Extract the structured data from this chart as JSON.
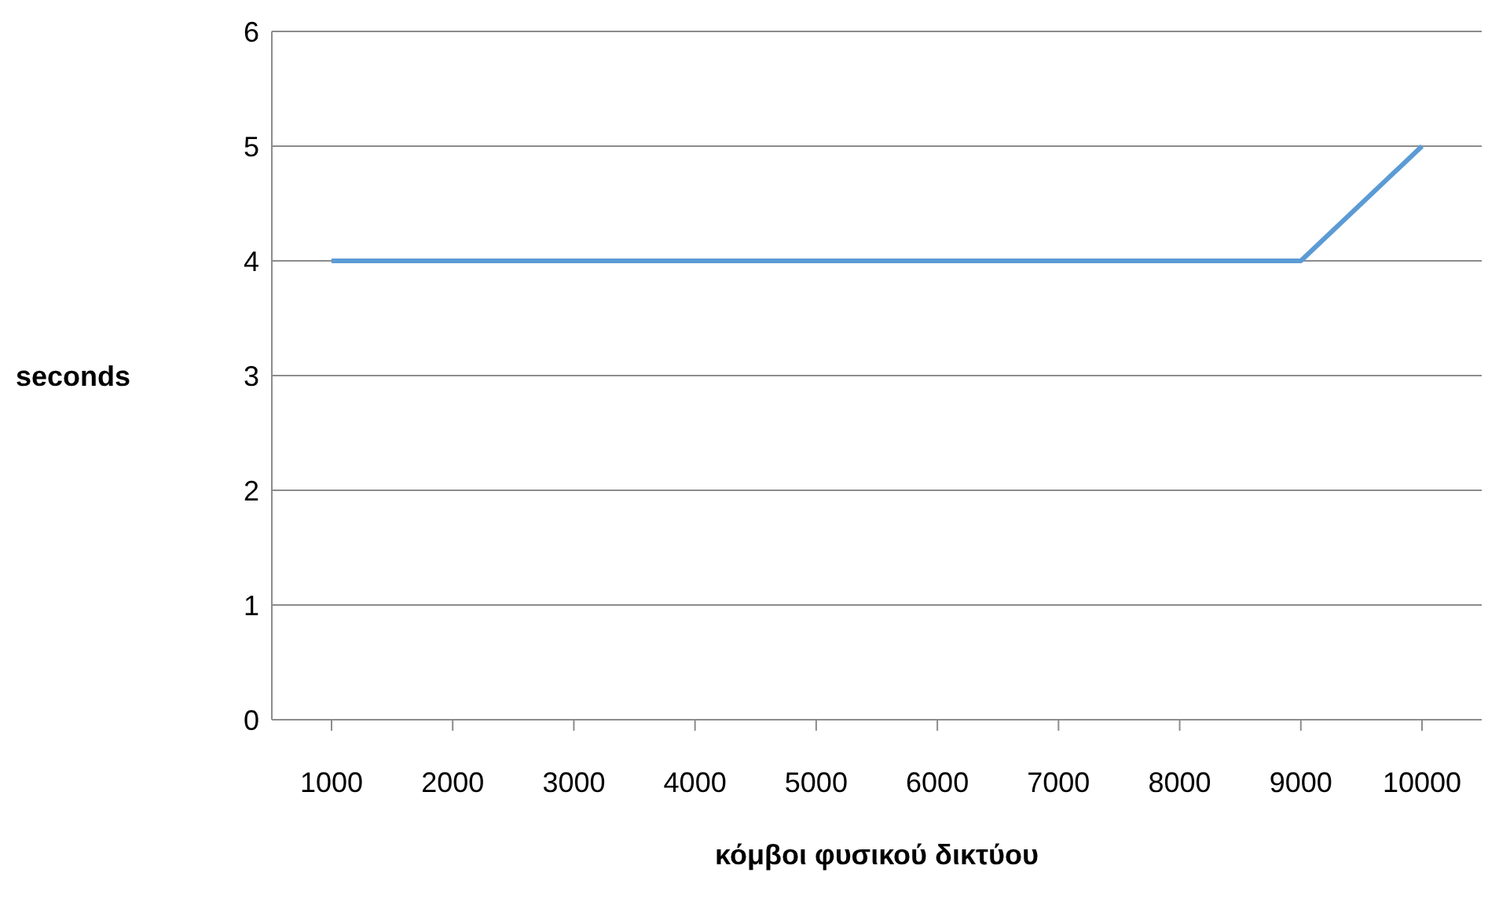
{
  "chart_data": {
    "type": "line",
    "xlabel": "κόμβοι φυσικού δικτύου",
    "ylabel": "seconds",
    "categories": [
      "1000",
      "2000",
      "3000",
      "4000",
      "5000",
      "6000",
      "7000",
      "8000",
      "9000",
      "10000"
    ],
    "series": [
      {
        "color": "#5b9bd5",
        "values": [
          4,
          4,
          4,
          4,
          4,
          4,
          4,
          4,
          4,
          5
        ]
      }
    ],
    "ylim": [
      0,
      6
    ],
    "yticks": [
      0,
      1,
      2,
      3,
      4,
      5,
      6
    ],
    "grid": "y",
    "marker": "none",
    "line_style": "solid"
  }
}
